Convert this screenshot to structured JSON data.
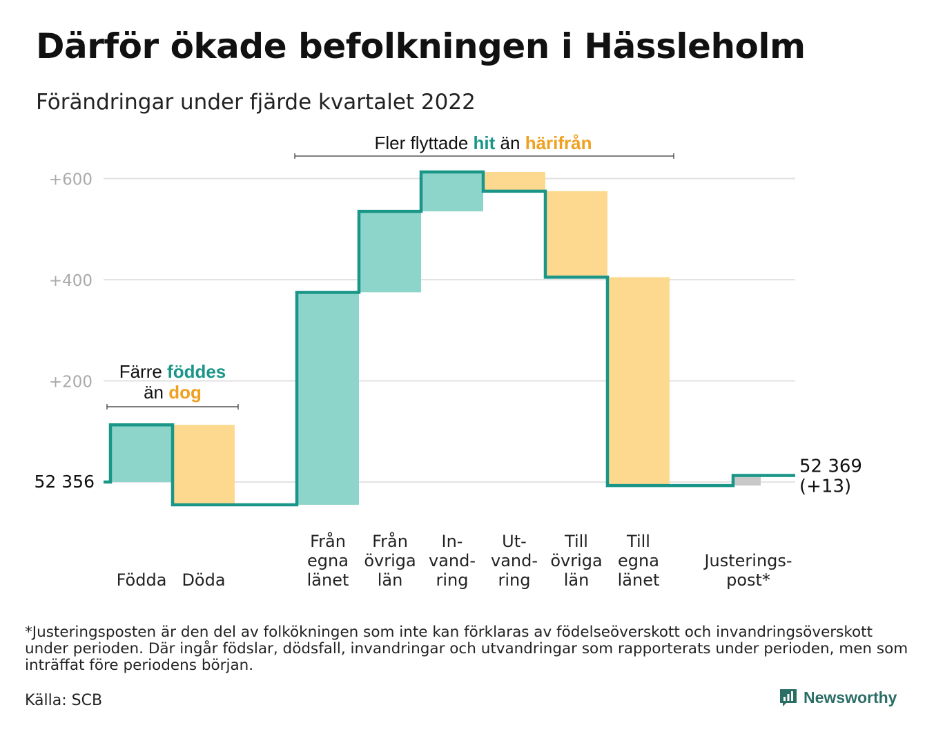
{
  "title": "Därför ökade befolkningen i Hässleholm",
  "subtitle": "Förändringar under fjärde kvartalet 2022",
  "colors": {
    "teal": "#1a9688",
    "teal_fill": "#8dd5ca",
    "orange": "#f0a020",
    "orange_fill": "#fdd98f",
    "gray_fill": "#c8c8c8",
    "grid": "#e2e2e2",
    "tick": "#aaaaaa"
  },
  "chart_data": {
    "type": "waterfall",
    "baseline_value": 52356,
    "y_ticks": [
      "+200",
      "+400",
      "+600"
    ],
    "y_tick_values": [
      200,
      400,
      600
    ],
    "ylim": [
      -70,
      640
    ],
    "start_label": "52 356",
    "end_label_lines": [
      "52 369",
      "(+13)"
    ],
    "steps": [
      {
        "label_lines": [
          "Födda"
        ],
        "change": 113,
        "kind": "in"
      },
      {
        "label_lines": [
          "Döda"
        ],
        "change": -158,
        "kind": "out"
      },
      {
        "label_lines": [
          "Från",
          "egna",
          "länet"
        ],
        "change": 420,
        "kind": "in"
      },
      {
        "label_lines": [
          "Från",
          "övriga",
          "län"
        ],
        "change": 160,
        "kind": "in"
      },
      {
        "label_lines": [
          "In-",
          "vand-",
          "ring"
        ],
        "change": 78,
        "kind": "in"
      },
      {
        "label_lines": [
          "Ut-",
          "vand-",
          "ring"
        ],
        "change": -38,
        "kind": "out"
      },
      {
        "label_lines": [
          "Till",
          "övriga",
          "län"
        ],
        "change": -170,
        "kind": "out"
      },
      {
        "label_lines": [
          "Till",
          "egna",
          "länet"
        ],
        "change": -412,
        "kind": "out"
      },
      {
        "label_lines": [
          "Justerings-",
          "post*"
        ],
        "change": 20,
        "kind": "adjust"
      }
    ],
    "annotations": {
      "births": {
        "line1_pre": "Färre ",
        "line1_hl": "föddes",
        "line2_pre": "än ",
        "line2_hl": "dog"
      },
      "migration": {
        "pre": "Fler flyttade ",
        "hl1": "hit",
        "mid": " än ",
        "hl2": "härifrån"
      }
    }
  },
  "footnote": "*Justeringsposten är den del av folkökningen som inte kan förklaras av födelseöverskott och invandringsöverskott under perioden. Där ingår födslar, dödsfall, invandringar och utvandringar som rapporterats under perioden, men som inträffat före periodens början.",
  "source": "Källa: SCB",
  "brand": {
    "name": "Newsworthy",
    "icon": "newsworthy-logo-icon"
  }
}
